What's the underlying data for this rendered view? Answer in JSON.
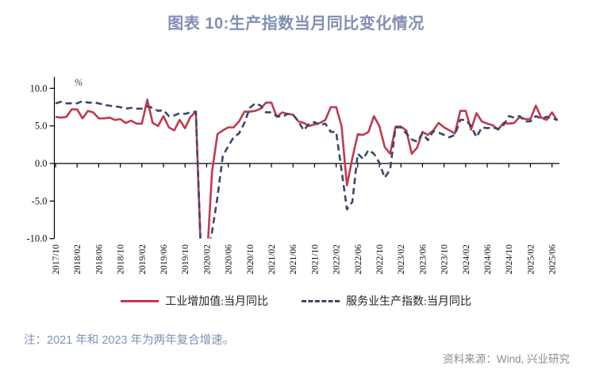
{
  "title": "图表 10:生产指数当月同比变化情况",
  "axis": {
    "unit_label": "%",
    "y_ticks": [
      "10.0",
      "5.0",
      "0.0",
      "-5.0",
      "-10.0"
    ],
    "y_values": [
      10,
      5,
      0,
      -5,
      -10
    ]
  },
  "legend": {
    "industrial": "工业增加值:当月同比",
    "services": "服务业生产指数:当月同比"
  },
  "note": "注：2021 年和 2023 年为两年复合增速。",
  "source": "资料来源：Wind, 兴业研究",
  "colors": {
    "industrial": "#C03A50",
    "services": "#3C4768",
    "title": "#8090B3",
    "note": "#8191B5",
    "source": "#8C8C8C",
    "axis": "#000000",
    "tick_label": "#111111"
  },
  "chart_data": {
    "type": "line",
    "title": "图表 10:生产指数当月同比变化情况",
    "ylabel": "%",
    "ylim": [
      -10,
      10
    ],
    "grid": false,
    "legend_position": "bottom",
    "note": "2021 年和 2023 年为两年复合增速",
    "x_tick_labels": [
      "2017/10",
      "2018/02",
      "2018/06",
      "2018/10",
      "2019/02",
      "2019/06",
      "2019/10",
      "2020/02",
      "2020/06",
      "2020/10",
      "2021/02",
      "2021/06",
      "2021/10",
      "2022/02",
      "2022/06",
      "2022/10",
      "2023/02",
      "2023/06",
      "2023/10",
      "2024/02",
      "2024/06",
      "2024/10",
      "2025/02",
      "2025/06"
    ],
    "categories": [
      "2017/10",
      "2017/11",
      "2017/12",
      "2018/01",
      "2018/02",
      "2018/03",
      "2018/04",
      "2018/05",
      "2018/06",
      "2018/07",
      "2018/08",
      "2018/09",
      "2018/10",
      "2018/11",
      "2018/12",
      "2019/01",
      "2019/02",
      "2019/03",
      "2019/04",
      "2019/05",
      "2019/06",
      "2019/07",
      "2019/08",
      "2019/09",
      "2019/10",
      "2019/11",
      "2019/12",
      "2020/01",
      "2020/02",
      "2020/03",
      "2020/04",
      "2020/05",
      "2020/06",
      "2020/07",
      "2020/08",
      "2020/09",
      "2020/10",
      "2020/11",
      "2020/12",
      "2021/01",
      "2021/02",
      "2021/03",
      "2021/04",
      "2021/05",
      "2021/06",
      "2021/07",
      "2021/08",
      "2021/09",
      "2021/10",
      "2021/11",
      "2021/12",
      "2022/01",
      "2022/02",
      "2022/03",
      "2022/04",
      "2022/05",
      "2022/06",
      "2022/07",
      "2022/08",
      "2022/09",
      "2022/10",
      "2022/11",
      "2022/12",
      "2023/01",
      "2023/02",
      "2023/03",
      "2023/04",
      "2023/05",
      "2023/06",
      "2023/07",
      "2023/08",
      "2023/09",
      "2023/10",
      "2023/11",
      "2023/12",
      "2024/01",
      "2024/02",
      "2024/03",
      "2024/04",
      "2024/05",
      "2024/06",
      "2024/07",
      "2024/08",
      "2024/09",
      "2024/10",
      "2024/11",
      "2024/12",
      "2025/01",
      "2025/02",
      "2025/03",
      "2025/04",
      "2025/05",
      "2025/06",
      "2025/07"
    ],
    "series": [
      {
        "name": "工业增加值:当月同比",
        "style": "solid",
        "color": "#C03A50",
        "values": [
          6.2,
          6.1,
          6.2,
          7.2,
          7.2,
          6.0,
          7.0,
          6.8,
          6.0,
          6.0,
          6.1,
          5.8,
          5.9,
          5.4,
          5.7,
          5.3,
          5.3,
          8.5,
          5.4,
          5.0,
          6.3,
          4.8,
          4.4,
          5.8,
          4.7,
          6.2,
          6.9,
          -13.5,
          -13.5,
          -1.1,
          3.9,
          4.4,
          4.8,
          4.8,
          5.6,
          6.9,
          6.9,
          7.0,
          7.3,
          8.1,
          8.1,
          6.2,
          6.8,
          6.6,
          6.5,
          5.6,
          5.4,
          5.0,
          5.2,
          5.4,
          5.8,
          7.5,
          7.5,
          5.0,
          -2.9,
          0.7,
          3.9,
          3.8,
          4.2,
          6.3,
          5.0,
          2.2,
          1.3,
          4.9,
          4.9,
          4.4,
          1.3,
          2.1,
          4.2,
          3.8,
          4.4,
          5.4,
          4.8,
          4.4,
          4.0,
          7.0,
          7.0,
          4.5,
          6.7,
          5.6,
          5.3,
          5.1,
          4.5,
          5.4,
          5.3,
          5.4,
          6.2,
          5.9,
          5.9,
          7.7,
          6.1,
          5.8,
          6.8,
          5.7
        ]
      },
      {
        "name": "服务业生产指数:当月同比",
        "style": "dashed",
        "color": "#3C4768",
        "values": [
          8.0,
          8.2,
          8.0,
          8.0,
          8.0,
          8.3,
          8.1,
          8.1,
          8.0,
          7.8,
          7.7,
          7.6,
          7.5,
          7.3,
          7.4,
          7.3,
          7.3,
          7.6,
          7.4,
          7.0,
          7.1,
          6.3,
          6.4,
          6.7,
          6.6,
          6.8,
          6.9,
          -13.0,
          -13.0,
          -9.1,
          -4.5,
          1.0,
          2.3,
          3.5,
          4.0,
          5.4,
          7.4,
          8.0,
          7.7,
          6.8,
          6.8,
          6.3,
          6.2,
          6.6,
          6.5,
          5.6,
          4.4,
          5.3,
          5.5,
          5.1,
          5.3,
          4.2,
          4.2,
          -0.9,
          -6.1,
          -5.1,
          1.3,
          0.6,
          1.8,
          1.3,
          0.1,
          -1.9,
          -0.8,
          4.8,
          4.8,
          4.0,
          3.2,
          2.9,
          4.0,
          3.1,
          4.3,
          4.1,
          3.8,
          3.5,
          3.8,
          5.8,
          5.8,
          5.0,
          3.5,
          4.8,
          4.7,
          4.8,
          4.6,
          5.1,
          6.3,
          6.1,
          6.3,
          5.6,
          5.6,
          6.3,
          6.0,
          6.2,
          6.0,
          5.8
        ]
      }
    ]
  }
}
